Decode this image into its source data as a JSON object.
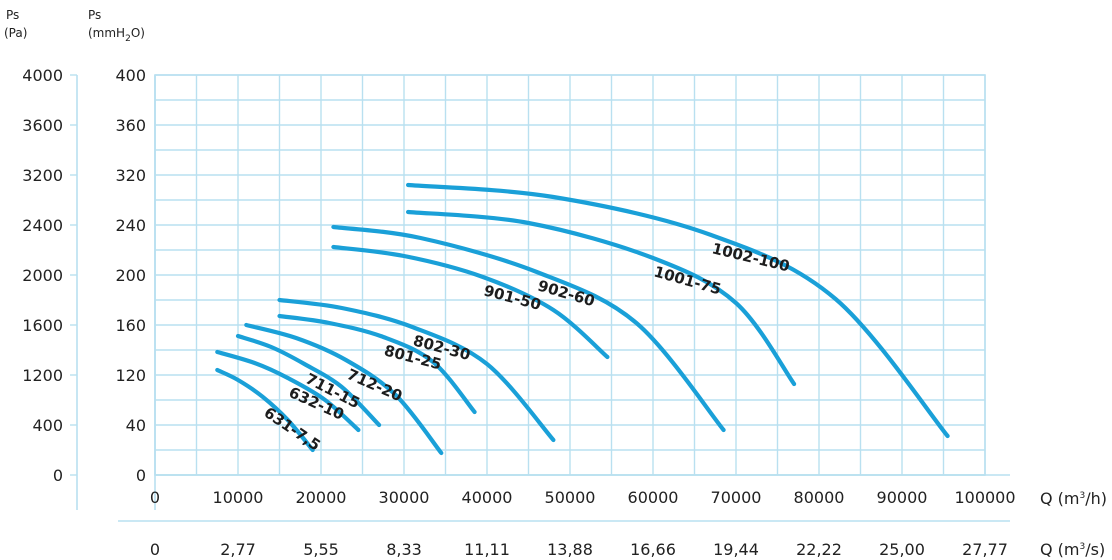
{
  "chart_data": {
    "type": "line",
    "title": "",
    "labels": {
      "ps_pa": "Ps",
      "ps_pa_unit": "(Pa)",
      "ps_mm": "Ps",
      "ps_mm_unit": "(mmH",
      "ps_mm_sub": "2",
      "ps_mm_end": "O)",
      "q_m3h": "Q (m",
      "q_m3h_sup": "3",
      "q_m3h_end": "/h)",
      "q_m3s": "Q (m",
      "q_m3s_sup": "3",
      "q_m3s_end": "/s)"
    },
    "x_primary": {
      "unit": "m3/h",
      "ticks": [
        0,
        10000,
        20000,
        30000,
        40000,
        50000,
        60000,
        70000,
        80000,
        90000,
        100000
      ],
      "range": [
        0,
        100000
      ]
    },
    "x_secondary": {
      "unit": "m3/s",
      "ticks": [
        "0",
        "2,77",
        "5,55",
        "8,33",
        "11,11",
        "13,88",
        "16,66",
        "19,44",
        "22,22",
        "25,00",
        "27,77"
      ]
    },
    "y_primary": {
      "unit": "mmH2O",
      "ticks": [
        0,
        40,
        120,
        160,
        200,
        240,
        320,
        360,
        400
      ]
    },
    "y_secondary": {
      "unit": "Pa",
      "ticks": [
        0,
        400,
        1200,
        1600,
        2000,
        2400,
        3200,
        3600,
        4000
      ]
    },
    "grid": true,
    "color": "#1aa0d8",
    "series": [
      {
        "name": "631-7,5",
        "x": [
          7500,
          10000,
          13000,
          16000,
          19000
        ],
        "y": [
          105,
          95,
          78,
          55,
          25
        ]
      },
      {
        "name": "632-10",
        "x": [
          7500,
          12000,
          16000,
          20500,
          24500
        ],
        "y": [
          123,
          112,
          97,
          75,
          45
        ]
      },
      {
        "name": "711-15",
        "x": [
          10000,
          14000,
          18000,
          22500,
          27000
        ],
        "y": [
          139,
          128,
          111,
          88,
          50
        ]
      },
      {
        "name": "712-20",
        "x": [
          11000,
          17000,
          23000,
          29000,
          34500
        ],
        "y": [
          150,
          137,
          115,
          80,
          22
        ]
      },
      {
        "name": "801-25",
        "x": [
          15000,
          21000,
          27500,
          33500,
          38500
        ],
        "y": [
          159,
          152,
          138,
          113,
          63
        ]
      },
      {
        "name": "802-30",
        "x": [
          15000,
          22500,
          31000,
          40000,
          48000
        ],
        "y": [
          175,
          167,
          148,
          111,
          35
        ]
      },
      {
        "name": "901-50",
        "x": [
          21500,
          30000,
          39500,
          48000,
          54500
        ],
        "y": [
          228,
          219,
          198,
          165,
          118
        ]
      },
      {
        "name": "902-60",
        "x": [
          21500,
          32000,
          46000,
          58000,
          68500
        ],
        "y": [
          248,
          237,
          203,
          152,
          45
        ]
      },
      {
        "name": "1001-75",
        "x": [
          30500,
          45000,
          60000,
          70000,
          77000
        ],
        "y": [
          263,
          252,
          217,
          172,
          91
        ]
      },
      {
        "name": "1002-100",
        "x": [
          30500,
          48000,
          67000,
          82000,
          95500
        ],
        "y": [
          290,
          278,
          240,
          176,
          39
        ]
      }
    ]
  }
}
